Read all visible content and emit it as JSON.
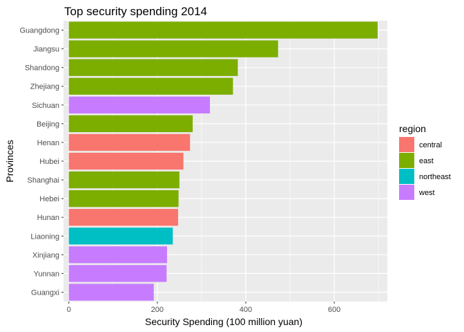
{
  "chart_data": {
    "type": "bar",
    "orientation": "horizontal",
    "title": "Top security spending 2014",
    "xlabel": "Security Spending (100 million yuan)",
    "ylabel": "Provinces",
    "xlim": [
      -12,
      720
    ],
    "xticks": [
      0,
      200,
      400,
      600
    ],
    "grid": true,
    "legend_position": "right",
    "legend_title": "region",
    "legend": [
      {
        "label": "central",
        "color": "#F8766D"
      },
      {
        "label": "east",
        "color": "#7CAE00"
      },
      {
        "label": "northeast",
        "color": "#00BFC4"
      },
      {
        "label": "west",
        "color": "#C77CFF"
      }
    ],
    "categories": [
      "Guangdong",
      "Jiangsu",
      "Shandong",
      "Zhejiang",
      "Sichuan",
      "Beijing",
      "Henan",
      "Hubei",
      "Shanghai",
      "Hebei",
      "Hunan",
      "Liaoning",
      "Xinjiang",
      "Yunnan",
      "Guangxi"
    ],
    "values": [
      698,
      473,
      382,
      371,
      319,
      280,
      274,
      259,
      250,
      248,
      247,
      235,
      222,
      221,
      192
    ],
    "regions": [
      "east",
      "east",
      "east",
      "east",
      "west",
      "east",
      "central",
      "central",
      "east",
      "east",
      "central",
      "northeast",
      "west",
      "west",
      "west"
    ]
  }
}
